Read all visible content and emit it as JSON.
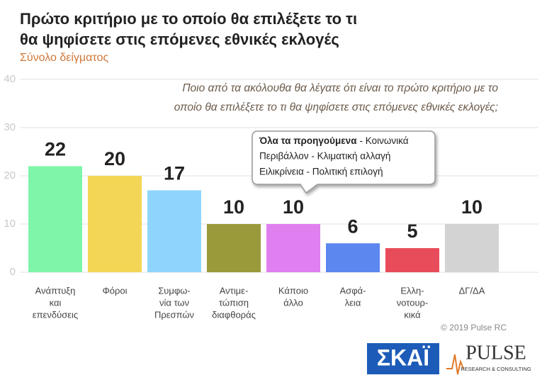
{
  "chart_data": {
    "type": "bar",
    "title": [
      "Πρώτο κριτήριο με το οποίο θα επιλέξετε το τι",
      "θα ψηφίσετε στις επόμενες εθνικές εκλογές"
    ],
    "subtitle": "Σύνολο δείγματος",
    "question": [
      "Ποιο από τα ακόλουθα θα λέγατε ότι είναι το πρώτο κριτήριο με το",
      "οποίο θα επιλέξετε το τι θα ψηφίσετε στις επόμενες εθνικές εκλογές;"
    ],
    "callout": {
      "bold": "Όλα τα προηγούμενα",
      "rest": "- Κοινωνικά",
      "lines": [
        "Περιβάλλον - Κλιματική αλλαγή",
        "Ειλικρίνεια - Πολιτική επιλογή"
      ]
    },
    "categories": [
      [
        "Ανάπτυξη",
        "και",
        "επενδύσεις"
      ],
      [
        "Φόροι"
      ],
      [
        "Συμφω-",
        "νία των",
        "Πρεσπών"
      ],
      [
        "Αντιμε-",
        "τώπιση",
        "διαφθοράς"
      ],
      [
        "Κάποιο",
        "άλλο"
      ],
      [
        "Ασφά-",
        "λεια"
      ],
      [
        "Ελλη-",
        "νοτουρ-",
        "κικά"
      ],
      [
        "ΔΓ/ΔΑ"
      ]
    ],
    "values": [
      22,
      20,
      17,
      10,
      10,
      6,
      5,
      10
    ],
    "colors": [
      "#7ef5a8",
      "#f4d656",
      "#8fd5fb",
      "#9a9a3a",
      "#e07fef",
      "#5b87ef",
      "#e84c5a",
      "#d3d3d3"
    ],
    "ylim": [
      0,
      40
    ],
    "yticks": [
      0,
      10,
      20,
      30,
      40
    ],
    "grid": true,
    "copyright": "© 2019 Pulse RC",
    "logos": {
      "skai": "ΣΚΑΪ",
      "pulse": "PULSE",
      "pulse_sub": "RESEARCH & CONSULTING"
    }
  }
}
